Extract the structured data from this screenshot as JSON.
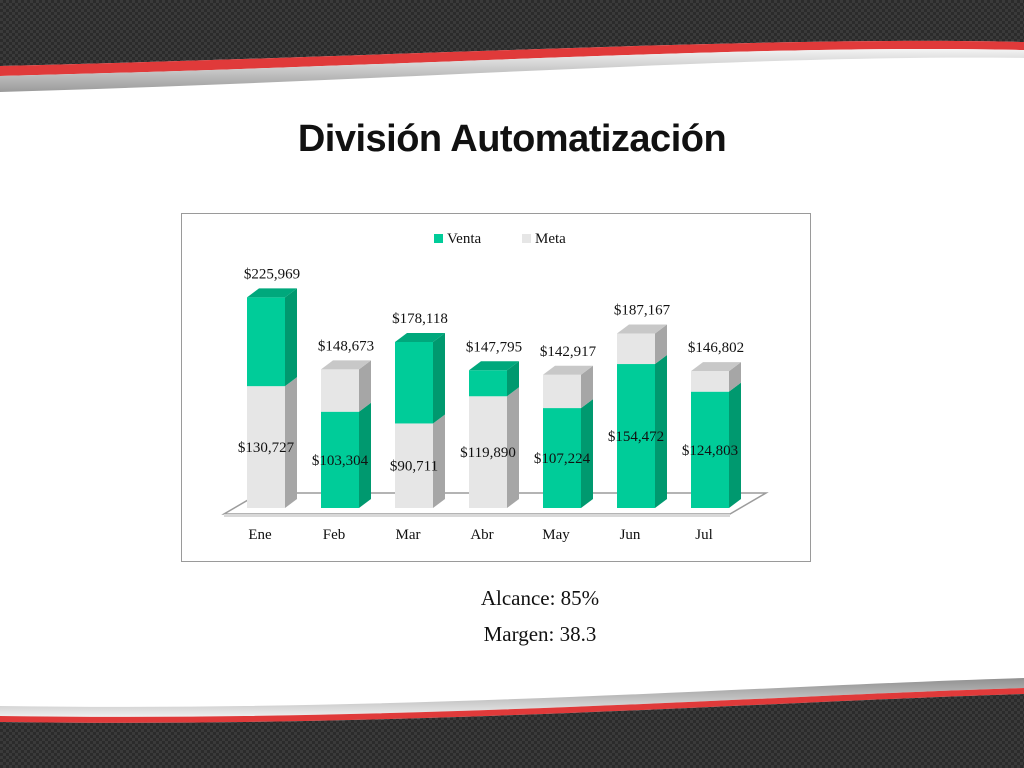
{
  "title": "División Automatización",
  "chart_data": {
    "type": "bar",
    "stacked": true,
    "three_d": true,
    "categories": [
      "Ene",
      "Feb",
      "Mar",
      "Abr",
      "May",
      "Jun",
      "Jul"
    ],
    "series": [
      {
        "name": "Venta",
        "color": "#00cc99",
        "side_color": "#00996f",
        "top_color": "#00a87c",
        "values": [
          95242,
          103304,
          87407,
          27905,
          107224,
          154472,
          124803
        ],
        "labels": [
          "",
          "$103,304",
          "",
          "",
          "$107,224",
          "$154,472",
          "$124,803"
        ]
      },
      {
        "name": "Meta",
        "color": "#e6e6e6",
        "side_color": "#a6a6a6",
        "top_color": "#c8c8c8",
        "values": [
          130727,
          45369,
          90711,
          119890,
          35693,
          32695,
          21999
        ],
        "labels": [
          "$130,727",
          "",
          "$90,711",
          "$119,890",
          "",
          "",
          ""
        ]
      }
    ],
    "order_bottom_to_top": [
      [
        "Meta",
        "Venta"
      ],
      [
        "Venta",
        "Meta"
      ],
      [
        "Meta",
        "Venta"
      ],
      [
        "Meta",
        "Venta"
      ],
      [
        "Venta",
        "Meta"
      ],
      [
        "Venta",
        "Meta"
      ],
      [
        "Venta",
        "Meta"
      ]
    ],
    "total_labels": [
      "$225,969",
      "$148,673",
      "$178,118",
      "$147,795",
      "$142,917",
      "$187,167",
      "$146,802"
    ],
    "ylim": [
      0,
      250000
    ],
    "legend_position": "top-center",
    "grid": false
  },
  "stats": {
    "alcance": "Alcance: 85%",
    "margen": "Margen: 38.3"
  }
}
